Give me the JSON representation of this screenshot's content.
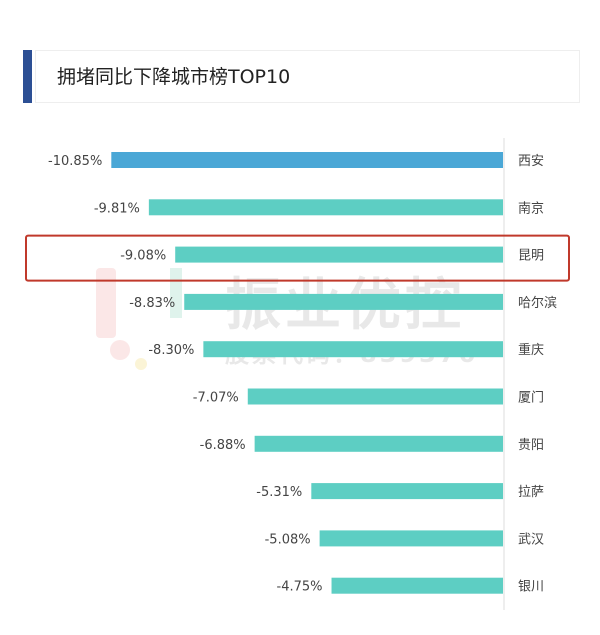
{
  "header": {
    "title": "拥堵同比下降城市榜TOP10"
  },
  "watermark": {
    "brand": "振业优控",
    "stock_code": "股票代码：839376"
  },
  "highlight": {
    "category": "昆明",
    "color": "#c0392b"
  },
  "chart_data": {
    "type": "bar",
    "orientation": "horizontal",
    "title": "拥堵同比下降城市榜TOP10",
    "categories": [
      "西安",
      "南京",
      "昆明",
      "哈尔滨",
      "重庆",
      "厦门",
      "贵阳",
      "拉萨",
      "武汉",
      "银川"
    ],
    "values": [
      -10.85,
      -9.81,
      -9.08,
      -8.83,
      -8.3,
      -7.07,
      -6.88,
      -5.31,
      -5.08,
      -4.75
    ],
    "labels": [
      "-10.85%",
      "-9.81%",
      "-9.08%",
      "-8.83%",
      "-8.30%",
      "-7.07%",
      "-6.88%",
      "-5.31%",
      "-5.08%",
      "-4.75%"
    ],
    "unit": "%",
    "category_axis": "right",
    "grid": false,
    "colors": {
      "first": "#4aa7d6",
      "rest": "#5dcec3"
    }
  }
}
